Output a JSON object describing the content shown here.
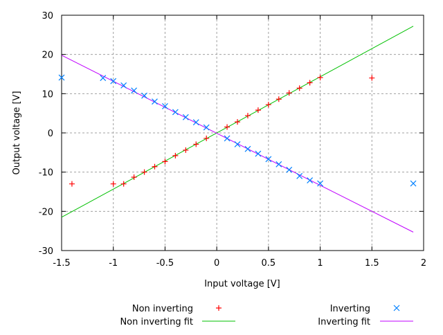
{
  "chart_data": {
    "type": "scatter",
    "title": "",
    "xlabel": "Input voltage [V]",
    "ylabel": "Output voltage [V]",
    "xlim": [
      -1.5,
      2
    ],
    "ylim": [
      -30,
      30
    ],
    "xticks": [
      -1.5,
      -1,
      -0.5,
      0,
      0.5,
      1,
      1.5,
      2
    ],
    "xtick_labels": [
      "-1.5",
      "-1",
      "-0.5",
      "0",
      "0.5",
      "1",
      "1.5",
      "2"
    ],
    "yticks": [
      -30,
      -20,
      -10,
      0,
      10,
      20,
      30
    ],
    "ytick_labels": [
      "-30",
      "-20",
      "-10",
      "0",
      "10",
      "20",
      "30"
    ],
    "grid": true,
    "legend_placement": "bottom",
    "series": [
      {
        "name": "Non inverting",
        "kind": "points",
        "marker": "plus",
        "color": "#ff0000",
        "x": [
          -1.4,
          -1.0,
          -0.9,
          -0.8,
          -0.7,
          -0.6,
          -0.5,
          -0.4,
          -0.3,
          -0.2,
          -0.1,
          0.1,
          0.2,
          0.3,
          0.4,
          0.5,
          0.6,
          0.7,
          0.8,
          0.9,
          1.0,
          1.5
        ],
        "y": [
          -13,
          -13,
          -13,
          -11.3,
          -10,
          -8.6,
          -7.3,
          -5.8,
          -4.4,
          -2.9,
          -1.4,
          1.5,
          2.8,
          4.4,
          5.8,
          7.2,
          8.6,
          10.2,
          11.4,
          12.8,
          14.1,
          14
        ]
      },
      {
        "name": "Non inverting fit",
        "kind": "line",
        "color": "#00c000",
        "x": [
          -1.5,
          1.9
        ],
        "y": [
          -21.5,
          27.2
        ]
      },
      {
        "name": "Inverting",
        "kind": "points",
        "marker": "cross",
        "color": "#0080ff",
        "x": [
          -1.5,
          -1.1,
          -1.0,
          -0.9,
          -0.8,
          -0.7,
          -0.6,
          -0.5,
          -0.4,
          -0.3,
          -0.2,
          -0.1,
          0.1,
          0.2,
          0.3,
          0.4,
          0.5,
          0.6,
          0.7,
          0.8,
          0.9,
          1.0,
          1.9
        ],
        "y": [
          14.1,
          14,
          13.2,
          12.1,
          10.8,
          9.5,
          8,
          6.8,
          5.3,
          4.0,
          2.7,
          1.4,
          -1.4,
          -2.9,
          -4.1,
          -5.3,
          -6.7,
          -8,
          -9.4,
          -11,
          -12.1,
          -12.9,
          -12.9
        ]
      },
      {
        "name": "Inverting fit",
        "kind": "line",
        "color": "#c000ff",
        "x": [
          -1.5,
          1.9
        ],
        "y": [
          19.8,
          -25.3
        ]
      }
    ]
  }
}
